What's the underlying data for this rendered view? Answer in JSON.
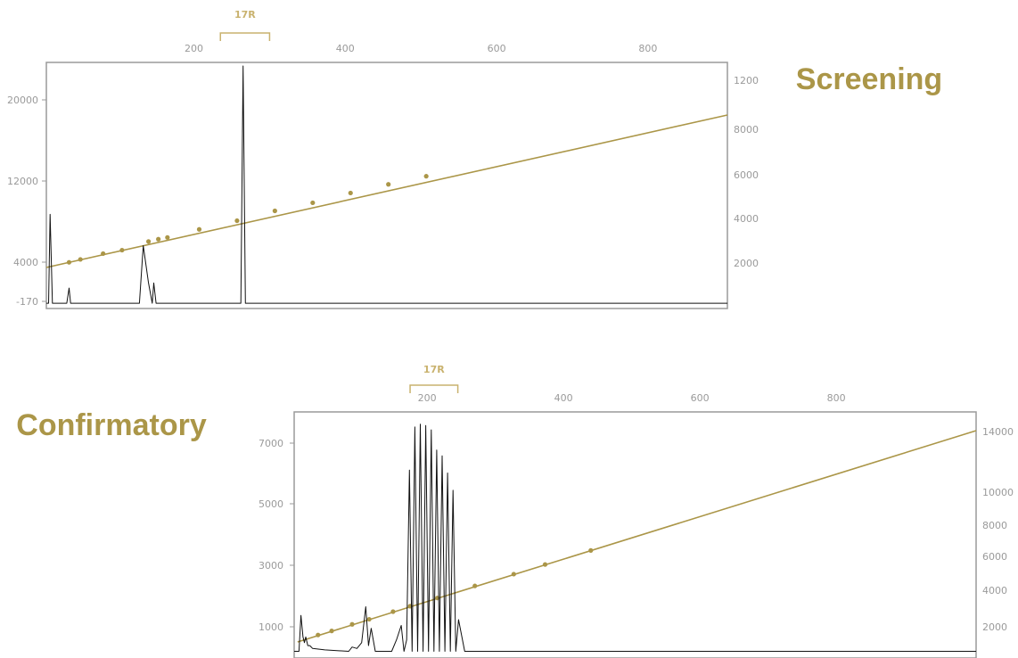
{
  "colors": {
    "frame": "#9a9a9a",
    "trace": "#111111",
    "fit": "#ab9648",
    "marker": "#c9b26e",
    "tick": "#9a9a9a"
  },
  "chart_data": [
    {
      "type": "line",
      "title": "Screening",
      "marker_label": "17R",
      "marker_range": [
        235,
        300
      ],
      "top_axis": {
        "ticks": [
          200,
          400,
          600,
          800
        ],
        "range": [
          5,
          905
        ]
      },
      "left_axis": {
        "ticks": [
          "20000",
          "12000",
          "4000",
          "-170"
        ],
        "range": [
          -170,
          23500
        ]
      },
      "right_axis": {
        "ticks": [
          "1200",
          "8000",
          "6000",
          "4000",
          "2000"
        ]
      },
      "trace": {
        "x": [
          5,
          8,
          10,
          13,
          20,
          32,
          35,
          37,
          60,
          80,
          100,
          120,
          128,
          133,
          140,
          145,
          147,
          150,
          155,
          160,
          175,
          200,
          230,
          255,
          262,
          265,
          268,
          275,
          300,
          350,
          400,
          500,
          600,
          700,
          800,
          905
        ],
        "y": [
          0,
          0,
          8800,
          0,
          0,
          0,
          1500,
          0,
          0,
          0,
          0,
          0,
          0,
          5700,
          2000,
          0,
          2000,
          0,
          0,
          0,
          0,
          0,
          0,
          0,
          0,
          23500,
          0,
          0,
          0,
          0,
          0,
          0,
          0,
          0,
          0,
          0
        ]
      },
      "fit": {
        "x": [
          5,
          905
        ],
        "y": [
          3400,
          16600
        ]
      },
      "fit_points": {
        "x": [
          35,
          50,
          80,
          105,
          140,
          153,
          165,
          207,
          257,
          307,
          357,
          407,
          457,
          507
        ],
        "y": [
          3850,
          4100,
          4600,
          4900,
          5650,
          5850,
          6000,
          6700,
          7450,
          8300,
          9000,
          9850,
          10600,
          11300
        ]
      }
    },
    {
      "type": "line",
      "title": "Confirmatory",
      "marker_label": "17R",
      "marker_range": [
        175,
        245
      ],
      "top_axis": {
        "ticks": [
          200,
          400,
          600,
          800
        ],
        "range": [
          5,
          1005
        ]
      },
      "left_axis": {
        "ticks": [
          "7000",
          "5000",
          "3000",
          "1000"
        ],
        "range": [
          -170,
          8200
        ]
      },
      "right_axis": {
        "ticks": [
          "14000",
          "10000",
          "8000",
          "6000",
          "4000",
          "2000"
        ]
      },
      "trace": {
        "x": [
          5,
          12,
          15,
          18,
          20,
          22,
          25,
          28,
          32,
          50,
          85,
          90,
          97,
          104,
          110,
          114,
          118,
          124,
          134,
          148,
          155,
          162,
          166,
          170,
          174,
          178,
          182,
          186,
          190,
          194,
          198,
          202,
          206,
          210,
          214,
          218,
          222,
          226,
          230,
          234,
          238,
          242,
          246,
          255,
          300,
          400,
          500,
          600,
          700,
          800,
          900,
          1005
        ],
        "y": [
          0,
          0,
          1250,
          500,
          300,
          500,
          200,
          200,
          100,
          50,
          0,
          150,
          100,
          300,
          1550,
          200,
          800,
          0,
          0,
          0,
          400,
          900,
          0,
          400,
          6300,
          0,
          7800,
          0,
          7900,
          0,
          7850,
          0,
          7700,
          0,
          7000,
          0,
          6800,
          0,
          6200,
          0,
          5600,
          0,
          1100,
          0,
          0,
          0,
          0,
          0,
          0,
          0,
          0,
          0
        ]
      },
      "fit": {
        "x": [
          10,
          1005
        ],
        "y": [
          830,
          17500
        ]
      },
      "fit_points": {
        "x": [
          40,
          60,
          90,
          115,
          150,
          175,
          215,
          270,
          327,
          373,
          440
        ],
        "y": [
          1380,
          1700,
          2220,
          2620,
          3220,
          3650,
          4300,
          5250,
          6180,
          6940,
          8050
        ]
      }
    }
  ]
}
